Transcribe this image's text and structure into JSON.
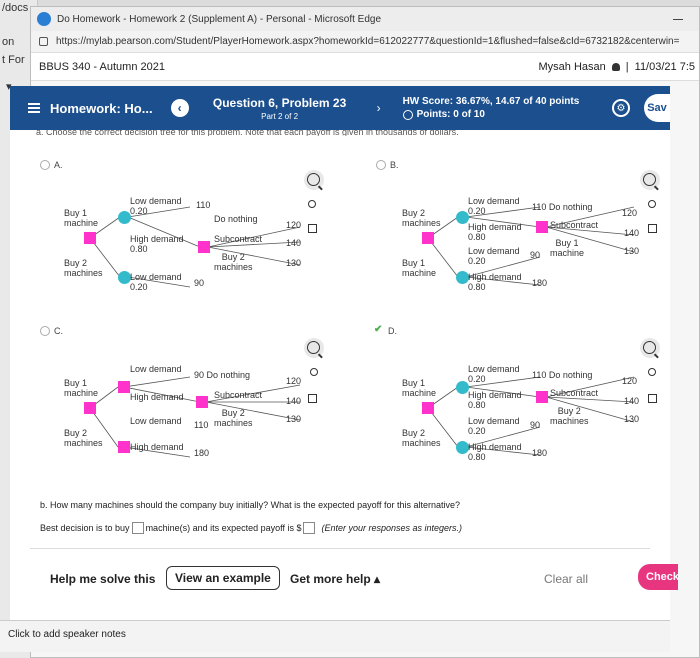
{
  "outer": {
    "docs_tab": "/docs",
    "strip_on": "on",
    "strip_for": "t For"
  },
  "browser": {
    "title": "Do Homework - Homework 2 (Supplement A) - Personal - Microsoft Edge",
    "url": "https://mylab.pearson.com/Student/PlayerHomework.aspx?homeworkId=612022777&questionId=1&flushed=false&cId=6732182&centerwin="
  },
  "course": {
    "name": "BBUS 340 - Autumn 2021",
    "user": "Mysah Hasan",
    "datetime": "11/03/21 7:5"
  },
  "nav": {
    "homework_label": "Homework: Ho...",
    "question": "Question 6, Problem 23",
    "part": "Part 2 of 2",
    "hw_score": "HW Score: 36.67%, 14.67 of 40 points",
    "points": "Points: 0 of 10",
    "save": "Sav"
  },
  "cut_text": "a. Choose the correct decision tree for this problem. Note that each payoff is given in thousands of dollars.",
  "options": {
    "A": {
      "label": "A.",
      "buy1": "Buy 1\nmachine",
      "buy2": "Buy 2\nmachines",
      "low": "Low demand\n0.20",
      "high": "High demand\n0.80",
      "low2": "Low demand\n0.20",
      "v110": "110",
      "v90": "90",
      "do_nothing": "Do nothing",
      "subcontract": "Subcontract",
      "buy2m": "Buy 2\nmachines",
      "v120": "120",
      "v140": "140",
      "v130": "130"
    },
    "B": {
      "label": "B.",
      "buy2": "Buy 2\nmachines",
      "buy1": "Buy 1\nmachine",
      "low": "Low demand\n0.20",
      "high": "High demand\n0.80",
      "low2": "Low demand\n0.20",
      "high2": "High demand\n0.80",
      "do_nothing": "110 Do nothing",
      "subcontract": "Subcontract",
      "buy1m": "Buy 1\nmachine",
      "v90": "90",
      "v180": "180",
      "v120": "120",
      "v140": "140",
      "v130": "130"
    },
    "C": {
      "label": "C.",
      "buy1": "Buy 1\nmachine",
      "buy2": "Buy 2\nmachines",
      "low": "Low demand",
      "high": "High demand",
      "low2": "Low demand",
      "high2": "High demand",
      "do_nothing": "90  Do nothing",
      "subcontract": "Subcontract",
      "buy2m": "Buy 2\nmachines",
      "v110": "110",
      "v180": "180",
      "v120": "120",
      "v140": "140",
      "v130": "130"
    },
    "D": {
      "label": "D.",
      "buy1": "Buy 1\nmachine",
      "buy2": "Buy 2\nmachines",
      "low": "Low demand\n0.20",
      "high": "High demand\n0.80",
      "low2": "Low demand\n0.20",
      "high2": "High demand\n0.80",
      "do_nothing": "110 Do nothing",
      "subcontract": "Subcontract",
      "buy2m": "Buy 2\nmachines",
      "v90": "90",
      "v180": "180",
      "v120": "120",
      "v140": "140",
      "v130": "130"
    }
  },
  "question_b": "b. How many machines should the company buy initially? What is the expected payoff for this alternative?",
  "answer": {
    "pre": "Best decision is to buy",
    "mid": "machine(s) and its expected payoff is $",
    "post": "(Enter your responses as integers.)"
  },
  "bottom": {
    "help": "Help me solve this",
    "example": "View an example",
    "more": "Get more help",
    "more_arrow": "▴",
    "clear": "Clear all",
    "check": "Check an"
  },
  "speaker_notes": "Click to add speaker notes"
}
